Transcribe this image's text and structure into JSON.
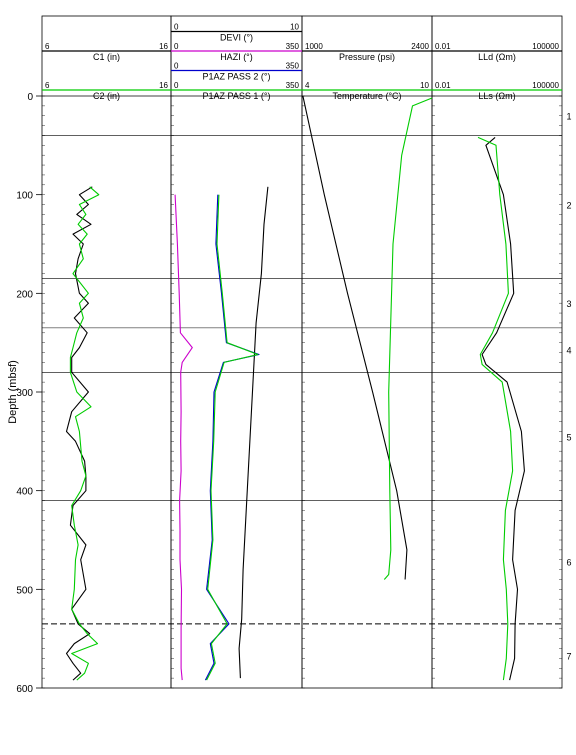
{
  "chart_data": {
    "type": "line",
    "title": "",
    "ylabel": "Depth (mbsf)",
    "ylim": [
      0,
      600
    ],
    "y_ticks": [
      0,
      100,
      200,
      300,
      400,
      500,
      600
    ],
    "grid": true,
    "horizontal_lines": [
      40,
      185,
      235,
      280,
      410
    ],
    "dashed_lines": [
      535
    ],
    "units": [
      {
        "label": "1",
        "depth": 20
      },
      {
        "label": "2",
        "depth": 110
      },
      {
        "label": "3",
        "depth": 210
      },
      {
        "label": "4",
        "depth": 257
      },
      {
        "label": "5",
        "depth": 345
      },
      {
        "label": "6",
        "depth": 472
      },
      {
        "label": "7",
        "depth": 567
      }
    ],
    "tracks": [
      {
        "id": "caliper",
        "curves": [
          {
            "name": "C1 (in)",
            "min_label": "6",
            "max_label": "16",
            "min": 6,
            "max": 16,
            "color": "#000000",
            "values": [
              [
                92,
                9.9
              ],
              [
                100,
                8.9
              ],
              [
                110,
                9.6
              ],
              [
                120,
                8.7
              ],
              [
                130,
                9.8
              ],
              [
                140,
                8.4
              ],
              [
                150,
                9.2
              ],
              [
                165,
                8.8
              ],
              [
                180,
                8.6
              ],
              [
                200,
                8.9
              ],
              [
                210,
                9.6
              ],
              [
                225,
                8.5
              ],
              [
                240,
                9.5
              ],
              [
                255,
                8.9
              ],
              [
                265,
                8.3
              ],
              [
                280,
                8.3
              ],
              [
                300,
                9.6
              ],
              [
                320,
                8.3
              ],
              [
                340,
                7.9
              ],
              [
                350,
                8.6
              ],
              [
                370,
                9.3
              ],
              [
                385,
                9.4
              ],
              [
                400,
                9.4
              ],
              [
                415,
                8.4
              ],
              [
                435,
                8.2
              ],
              [
                455,
                9.4
              ],
              [
                470,
                9.0
              ],
              [
                500,
                9.4
              ],
              [
                520,
                8.3
              ],
              [
                535,
                8.8
              ],
              [
                545,
                9.7
              ],
              [
                555,
                8.5
              ],
              [
                565,
                7.9
              ],
              [
                575,
                8.4
              ],
              [
                585,
                9.0
              ],
              [
                592,
                8.4
              ]
            ]
          },
          {
            "name": "C2 (in)",
            "min_label": "6",
            "max_label": "16",
            "min": 6,
            "max": 16,
            "color": "#00cc00",
            "values": [
              [
                92,
                9.7
              ],
              [
                100,
                10.4
              ],
              [
                110,
                8.9
              ],
              [
                120,
                9.4
              ],
              [
                130,
                8.8
              ],
              [
                140,
                9.5
              ],
              [
                150,
                8.9
              ],
              [
                165,
                9.2
              ],
              [
                180,
                8.4
              ],
              [
                200,
                9.6
              ],
              [
                210,
                8.9
              ],
              [
                225,
                9.2
              ],
              [
                240,
                8.7
              ],
              [
                255,
                8.4
              ],
              [
                265,
                8.2
              ],
              [
                280,
                8.2
              ],
              [
                300,
                8.7
              ],
              [
                315,
                9.8
              ],
              [
                325,
                8.6
              ],
              [
                340,
                8.9
              ],
              [
                355,
                9.0
              ],
              [
                370,
                9.1
              ],
              [
                385,
                9.4
              ],
              [
                400,
                9.0
              ],
              [
                415,
                8.3
              ],
              [
                435,
                8.5
              ],
              [
                455,
                8.8
              ],
              [
                470,
                8.6
              ],
              [
                500,
                8.5
              ],
              [
                520,
                8.3
              ],
              [
                535,
                8.9
              ],
              [
                545,
                9.5
              ],
              [
                555,
                10.3
              ],
              [
                565,
                8.3
              ],
              [
                575,
                9.6
              ],
              [
                585,
                9.3
              ],
              [
                592,
                8.7
              ]
            ]
          }
        ]
      },
      {
        "id": "orientation",
        "curves": [
          {
            "name": "DEVI (°)",
            "min_label": "0",
            "max_label": "10",
            "min": 0,
            "max": 10,
            "color": "#000000",
            "values": [
              [
                92,
                7.4
              ],
              [
                130,
                7.1
              ],
              [
                180,
                6.9
              ],
              [
                230,
                6.5
              ],
              [
                280,
                6.3
              ],
              [
                330,
                6.1
              ],
              [
                380,
                5.9
              ],
              [
                430,
                5.7
              ],
              [
                480,
                5.5
              ],
              [
                530,
                5.4
              ],
              [
                560,
                5.2
              ],
              [
                590,
                5.3
              ]
            ]
          },
          {
            "name": "HAZI (°)",
            "min_label": "0",
            "max_label": "350",
            "min": 0,
            "max": 350,
            "color": "#cc00cc",
            "values": [
              [
                100,
                11
              ],
              [
                150,
                17
              ],
              [
                200,
                22
              ],
              [
                240,
                25
              ],
              [
                255,
                57
              ],
              [
                270,
                30
              ],
              [
                280,
                26
              ],
              [
                320,
                27
              ],
              [
                350,
                26
              ],
              [
                380,
                27
              ],
              [
                410,
                23
              ],
              [
                440,
                24
              ],
              [
                470,
                24
              ],
              [
                500,
                28
              ],
              [
                540,
                27
              ],
              [
                580,
                27
              ],
              [
                592,
                30
              ]
            ]
          },
          {
            "name": "P1AZ PASS 2 (°)",
            "min_label": "0",
            "max_label": "350",
            "min": 0,
            "max": 350,
            "color": "#0000cc",
            "values": [
              [
                100,
                125
              ],
              [
                150,
                120
              ],
              [
                200,
                135
              ],
              [
                250,
                148
              ],
              [
                262,
                235
              ],
              [
                270,
                140
              ],
              [
                300,
                115
              ],
              [
                350,
                112
              ],
              [
                400,
                105
              ],
              [
                450,
                110
              ],
              [
                500,
                95
              ],
              [
                535,
                155
              ],
              [
                555,
                105
              ],
              [
                575,
                115
              ],
              [
                592,
                92
              ]
            ]
          },
          {
            "name": "P1AZ PASS 1 (°)",
            "min_label": "0",
            "max_label": "350",
            "min": 0,
            "max": 350,
            "color": "#00cc00",
            "values": [
              [
                100,
                128
              ],
              [
                150,
                123
              ],
              [
                200,
                137
              ],
              [
                250,
                150
              ],
              [
                262,
                232
              ],
              [
                270,
                142
              ],
              [
                300,
                118
              ],
              [
                350,
                114
              ],
              [
                400,
                107
              ],
              [
                450,
                112
              ],
              [
                500,
                98
              ],
              [
                535,
                150
              ],
              [
                555,
                108
              ],
              [
                575,
                118
              ],
              [
                592,
                95
              ]
            ]
          }
        ]
      },
      {
        "id": "pressure-temperature",
        "curves": [
          {
            "name": "Pressure (psi)",
            "min_label": "1000",
            "max_label": "2400",
            "min": 1000,
            "max": 2400,
            "color": "#000000",
            "values": [
              [
                0,
                1010
              ],
              [
                100,
                1240
              ],
              [
                200,
                1490
              ],
              [
                300,
                1760
              ],
              [
                400,
                2020
              ],
              [
                460,
                2130
              ],
              [
                490,
                2110
              ]
            ]
          },
          {
            "name": "Temperature (°C)",
            "min_label": "4",
            "max_label": "10",
            "min": 4,
            "max": 10,
            "color": "#00cc00",
            "values": [
              [
                2,
                10.0
              ],
              [
                10,
                9.1
              ],
              [
                60,
                8.6
              ],
              [
                150,
                8.2
              ],
              [
                300,
                8.0
              ],
              [
                400,
                8.05
              ],
              [
                460,
                8.1
              ],
              [
                485,
                8.0
              ],
              [
                490,
                7.8
              ]
            ]
          }
        ]
      },
      {
        "id": "resistivity",
        "curves": [
          {
            "name": "LLd (Ωm)",
            "min_label": "0.01",
            "max_label": "100000",
            "min": 0.01,
            "max": 100000,
            "color": "#000000",
            "scale": "log",
            "values": [
              [
                42,
                25
              ],
              [
                50,
                8
              ],
              [
                100,
                70
              ],
              [
                150,
                170
              ],
              [
                200,
                250
              ],
              [
                240,
                30
              ],
              [
                262,
                5
              ],
              [
                272,
                8
              ],
              [
                290,
                110
              ],
              [
                340,
                650
              ],
              [
                380,
                950
              ],
              [
                420,
                300
              ],
              [
                470,
                220
              ],
              [
                500,
                400
              ],
              [
                535,
                300
              ],
              [
                570,
                280
              ],
              [
                592,
                150
              ]
            ]
          },
          {
            "name": "LLs (Ωm)",
            "min_label": "0.01",
            "max_label": "100000",
            "min": 0.01,
            "max": 100000,
            "color": "#00cc00",
            "scale": "log",
            "values": [
              [
                42,
                3
              ],
              [
                50,
                28
              ],
              [
                100,
                45
              ],
              [
                150,
                95
              ],
              [
                200,
                130
              ],
              [
                240,
                18
              ],
              [
                262,
                4
              ],
              [
                272,
                5
              ],
              [
                290,
                60
              ],
              [
                340,
                170
              ],
              [
                380,
                220
              ],
              [
                420,
                90
              ],
              [
                470,
                70
              ],
              [
                500,
                100
              ],
              [
                535,
                120
              ],
              [
                570,
                100
              ],
              [
                592,
                70
              ]
            ]
          }
        ]
      }
    ]
  }
}
